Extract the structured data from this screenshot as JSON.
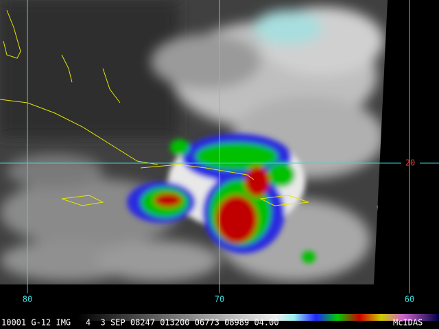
{
  "grid_labels": {
    "lon_80": "80",
    "lon_70": "70",
    "lon_60": "60",
    "lat_20": "20"
  },
  "footer": {
    "info": "10001 G-12 IMG   4  3 SEP 08247 013200 06773 08989 04.00",
    "brand": "McIDAS"
  }
}
